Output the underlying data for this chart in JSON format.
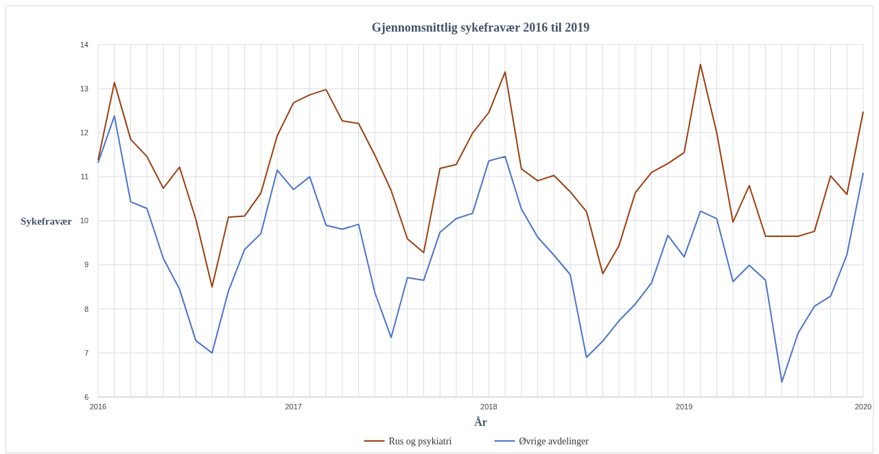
{
  "chart_data": {
    "type": "line",
    "title": "Gjennomsnittlig sykefravær 2016 til 2019",
    "xlabel": "År",
    "ylabel": "Sykefravær",
    "categories": [
      "2016",
      null,
      null,
      null,
      null,
      null,
      null,
      null,
      null,
      null,
      null,
      null,
      "2017",
      null,
      null,
      null,
      null,
      null,
      null,
      null,
      null,
      null,
      null,
      null,
      "2018",
      null,
      null,
      null,
      null,
      null,
      null,
      null,
      null,
      null,
      null,
      null,
      "2019",
      null,
      null,
      null,
      null,
      null,
      null,
      null,
      null,
      null,
      null,
      "2020"
    ],
    "series": [
      {
        "name": "Rus og psykiatri",
        "color": "#9c3d0c",
        "values": [
          11.38,
          13.14,
          11.85,
          11.46,
          10.74,
          11.22,
          10.04,
          8.5,
          10.08,
          10.11,
          10.63,
          11.93,
          12.68,
          12.86,
          12.98,
          12.27,
          12.21,
          11.49,
          10.69,
          9.59,
          9.28,
          11.19,
          11.28,
          11.99,
          12.46,
          13.38,
          11.18,
          10.91,
          11.03,
          10.66,
          10.21,
          8.8,
          9.44,
          10.64,
          11.1,
          11.3,
          11.55,
          13.55,
          12.0,
          9.97,
          10.8,
          9.65,
          9.65,
          9.65,
          9.76,
          11.02,
          10.6,
          12.48
        ]
      },
      {
        "name": "Øvrige avdelinger",
        "color": "#4a72cc",
        "values": [
          11.32,
          12.38,
          10.43,
          10.28,
          9.15,
          8.45,
          7.28,
          7.0,
          8.4,
          9.35,
          9.71,
          11.15,
          10.71,
          11.0,
          9.9,
          9.81,
          9.92,
          8.37,
          7.35,
          8.71,
          8.65,
          9.74,
          10.05,
          10.17,
          11.36,
          11.46,
          10.27,
          9.63,
          9.22,
          8.78,
          6.9,
          7.27,
          7.73,
          8.11,
          8.59,
          9.67,
          9.18,
          10.22,
          10.05,
          8.62,
          8.99,
          8.65,
          6.34,
          7.45,
          8.06,
          8.29,
          9.23,
          11.09
        ]
      }
    ],
    "ylim": [
      6,
      14
    ],
    "yticks": [
      6,
      7,
      8,
      9,
      10,
      11,
      12,
      13,
      14
    ],
    "grid": true,
    "legend": "bottom"
  }
}
